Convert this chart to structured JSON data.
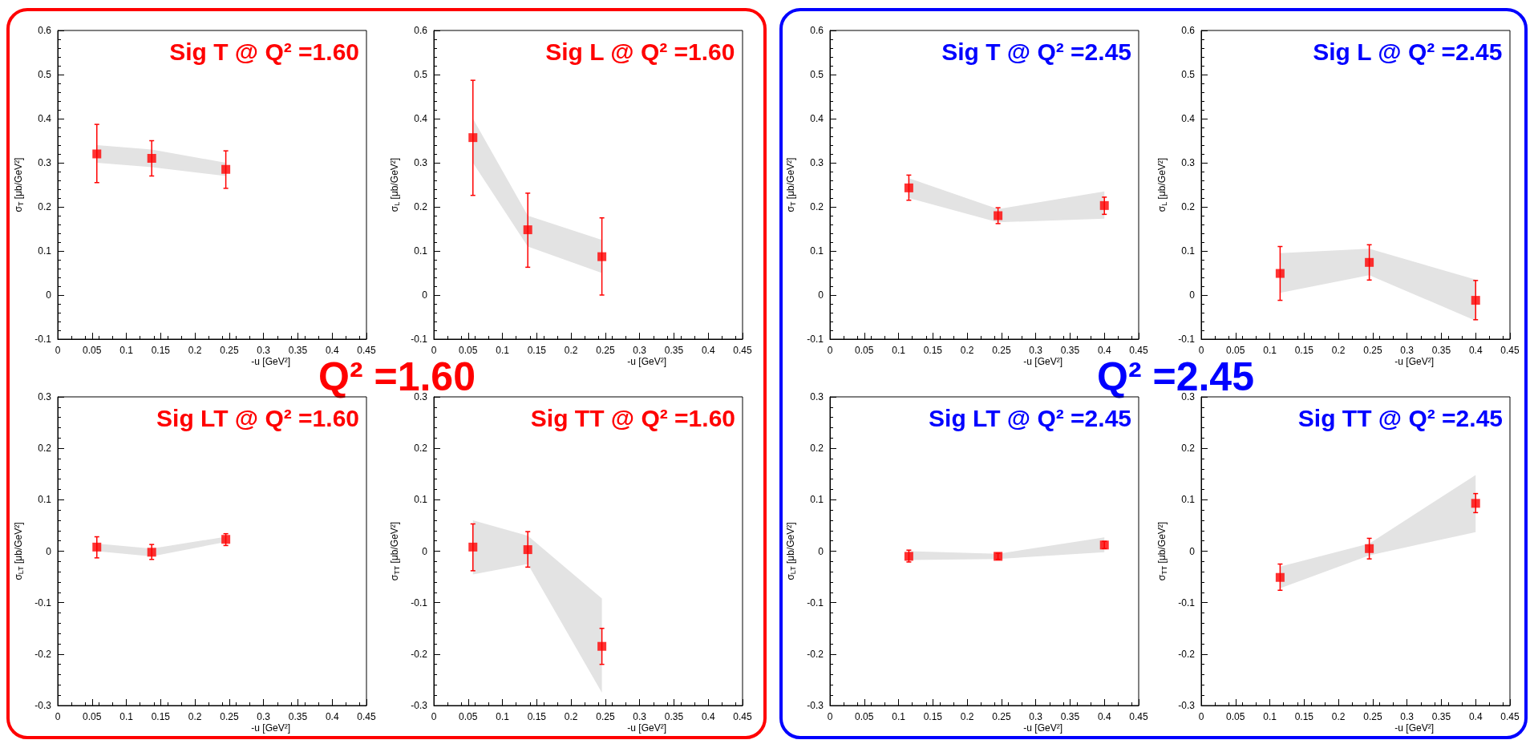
{
  "chart_data": [
    {
      "type": "scatter",
      "title": "Sig T @ Q² =1.60",
      "annotations": [
        "Q² =1.60"
      ],
      "xlabel": "-u [GeV²]",
      "ylabel": "σ$_{T}$ [μb/GeV²]",
      "xlim": [
        0,
        0.45
      ],
      "xticks": [
        0,
        0.05,
        0.1,
        0.15,
        0.2,
        0.25,
        0.3,
        0.35,
        0.4,
        0.45
      ],
      "ylim": [
        -0.1,
        0.6
      ],
      "yticks": [
        -0.1,
        0,
        0.1,
        0.2,
        0.3,
        0.4,
        0.5,
        0.6
      ],
      "marker": "square",
      "series": [
        {
          "color": "#ff0000",
          "x": [
            0.057,
            0.137,
            0.245
          ],
          "values": [
            0.32,
            0.31,
            0.285
          ],
          "errors": [
            [
              0.255,
              0.387
            ],
            [
              0.27,
              0.35
            ],
            [
              0.242,
              0.327
            ]
          ],
          "lower": [
            0.3,
            0.29,
            0.27
          ],
          "upper": [
            0.34,
            0.33,
            0.3
          ]
        }
      ]
    },
    {
      "type": "scatter",
      "title": "Sig L @ Q² =1.60",
      "xlabel": "-u [GeV²]",
      "ylabel": "σ$_{L}$ [μb/GeV²]",
      "xlim": [
        0,
        0.45
      ],
      "xticks": [
        0,
        0.05,
        0.1,
        0.15,
        0.2,
        0.25,
        0.3,
        0.35,
        0.4,
        0.45
      ],
      "ylim": [
        -0.1,
        0.6
      ],
      "yticks": [
        -0.1,
        0,
        0.1,
        0.2,
        0.3,
        0.4,
        0.5,
        0.6
      ],
      "marker": "square",
      "series": [
        {
          "color": "#ff0000",
          "x": [
            0.057,
            0.137,
            0.245
          ],
          "values": [
            0.357,
            0.148,
            0.087
          ],
          "errors": [
            [
              0.226,
              0.487
            ],
            [
              0.063,
              0.231
            ],
            [
              0.0,
              0.175
            ]
          ],
          "lower": [
            0.3,
            0.11,
            0.05
          ],
          "upper": [
            0.4,
            0.18,
            0.125
          ]
        }
      ]
    },
    {
      "type": "scatter",
      "title": "Sig T @ Q² =2.45",
      "annotations": [
        "Q² =2.45"
      ],
      "xlabel": "-u [GeV²]",
      "ylabel": "σ$_{T}$ [μb/GeV²]",
      "xlim": [
        0,
        0.45
      ],
      "xticks": [
        0,
        0.05,
        0.1,
        0.15,
        0.2,
        0.25,
        0.3,
        0.35,
        0.4,
        0.45
      ],
      "ylim": [
        -0.1,
        0.6
      ],
      "yticks": [
        -0.1,
        0,
        0.1,
        0.2,
        0.3,
        0.4,
        0.5,
        0.6
      ],
      "marker": "square",
      "series": [
        {
          "color": "#ff0000",
          "x": [
            0.115,
            0.245,
            0.4
          ],
          "values": [
            0.243,
            0.18,
            0.203
          ],
          "errors": [
            [
              0.215,
              0.272
            ],
            [
              0.162,
              0.198
            ],
            [
              0.183,
              0.222
            ]
          ],
          "lower": [
            0.22,
            0.165,
            0.173
          ],
          "upper": [
            0.265,
            0.195,
            0.235
          ]
        }
      ]
    },
    {
      "type": "scatter",
      "title": "Sig L @ Q² =2.45",
      "xlabel": "-u [GeV²]",
      "ylabel": "σ$_{L}$ [μb/GeV²]",
      "xlim": [
        0,
        0.45
      ],
      "xticks": [
        0,
        0.05,
        0.1,
        0.15,
        0.2,
        0.25,
        0.3,
        0.35,
        0.4,
        0.45
      ],
      "ylim": [
        -0.1,
        0.6
      ],
      "yticks": [
        -0.1,
        0,
        0.1,
        0.2,
        0.3,
        0.4,
        0.5,
        0.6
      ],
      "marker": "square",
      "series": [
        {
          "color": "#ff0000",
          "x": [
            0.115,
            0.245,
            0.4
          ],
          "values": [
            0.049,
            0.074,
            -0.012
          ],
          "errors": [
            [
              -0.012,
              0.11
            ],
            [
              0.034,
              0.114
            ],
            [
              -0.056,
              0.033
            ]
          ],
          "lower": [
            0.005,
            0.045,
            -0.058
          ],
          "upper": [
            0.095,
            0.105,
            0.035
          ]
        }
      ]
    },
    {
      "type": "scatter",
      "title": "Sig LT @ Q² =1.60",
      "xlabel": "-u [GeV²]",
      "ylabel": "σ$_{LT}$ [μb/GeV²]",
      "xlim": [
        0,
        0.45
      ],
      "xticks": [
        0,
        0.05,
        0.1,
        0.15,
        0.2,
        0.25,
        0.3,
        0.35,
        0.4,
        0.45
      ],
      "ylim": [
        -0.3,
        0.3
      ],
      "yticks": [
        -0.3,
        -0.2,
        -0.1,
        0,
        0.1,
        0.2,
        0.3
      ],
      "marker": "square",
      "series": [
        {
          "color": "#ff0000",
          "x": [
            0.057,
            0.137,
            0.245
          ],
          "values": [
            0.008,
            -0.002,
            0.023
          ],
          "errors": [
            [
              -0.013,
              0.028
            ],
            [
              -0.016,
              0.013
            ],
            [
              0.011,
              0.034
            ]
          ],
          "lower": [
            0.0,
            -0.01,
            0.018
          ],
          "upper": [
            0.015,
            0.005,
            0.028
          ]
        }
      ]
    },
    {
      "type": "scatter",
      "title": "Sig TT @ Q² =1.60",
      "xlabel": "-u [GeV²]",
      "ylabel": "σ$_{TT}$ [μb/GeV²]",
      "xlim": [
        0,
        0.45
      ],
      "xticks": [
        0,
        0.05,
        0.1,
        0.15,
        0.2,
        0.25,
        0.3,
        0.35,
        0.4,
        0.45
      ],
      "ylim": [
        -0.3,
        0.3
      ],
      "yticks": [
        -0.3,
        -0.2,
        -0.1,
        0,
        0.1,
        0.2,
        0.3
      ],
      "marker": "square",
      "series": [
        {
          "color": "#ff0000",
          "x": [
            0.057,
            0.137,
            0.245
          ],
          "values": [
            0.008,
            0.003,
            -0.185
          ],
          "errors": [
            [
              -0.038,
              0.053
            ],
            [
              -0.031,
              0.038
            ],
            [
              -0.22,
              -0.15
            ]
          ],
          "lower": [
            -0.045,
            -0.025,
            -0.275
          ],
          "upper": [
            0.06,
            0.03,
            -0.092
          ]
        }
      ]
    },
    {
      "type": "scatter",
      "title": "Sig LT @ Q² =2.45",
      "xlabel": "-u [GeV²]",
      "ylabel": "σ$_{LT}$ [μb/GeV²]",
      "xlim": [
        0,
        0.45
      ],
      "xticks": [
        0,
        0.05,
        0.1,
        0.15,
        0.2,
        0.25,
        0.3,
        0.35,
        0.4,
        0.45
      ],
      "ylim": [
        -0.3,
        0.3
      ],
      "yticks": [
        -0.3,
        -0.2,
        -0.1,
        0,
        0.1,
        0.2,
        0.3
      ],
      "marker": "square",
      "series": [
        {
          "color": "#ff0000",
          "x": [
            0.115,
            0.245,
            0.4
          ],
          "values": [
            -0.01,
            -0.01,
            0.012
          ],
          "errors": [
            [
              -0.021,
              0.002
            ],
            [
              -0.016,
              -0.004
            ],
            [
              0.005,
              0.019
            ]
          ],
          "lower": [
            -0.017,
            -0.015,
            -0.002
          ],
          "upper": [
            0.0,
            -0.005,
            0.027
          ]
        }
      ]
    },
    {
      "type": "scatter",
      "title": "Sig TT @ Q² =2.45",
      "xlabel": "-u [GeV²]",
      "ylabel": "σ$_{TT}$ [μb/GeV²]",
      "xlim": [
        0,
        0.45
      ],
      "xticks": [
        0,
        0.05,
        0.1,
        0.15,
        0.2,
        0.25,
        0.3,
        0.35,
        0.4,
        0.45
      ],
      "ylim": [
        -0.3,
        0.3
      ],
      "yticks": [
        -0.3,
        -0.2,
        -0.1,
        0,
        0.1,
        0.2,
        0.3
      ],
      "marker": "square",
      "series": [
        {
          "color": "#ff0000",
          "x": [
            0.115,
            0.245,
            0.4
          ],
          "values": [
            -0.051,
            0.005,
            0.093
          ],
          "errors": [
            [
              -0.076,
              -0.025
            ],
            [
              -0.015,
              0.025
            ],
            [
              0.075,
              0.112
            ]
          ],
          "lower": [
            -0.072,
            -0.008,
            0.037
          ],
          "upper": [
            -0.03,
            0.015,
            0.148
          ]
        }
      ]
    }
  ]
}
